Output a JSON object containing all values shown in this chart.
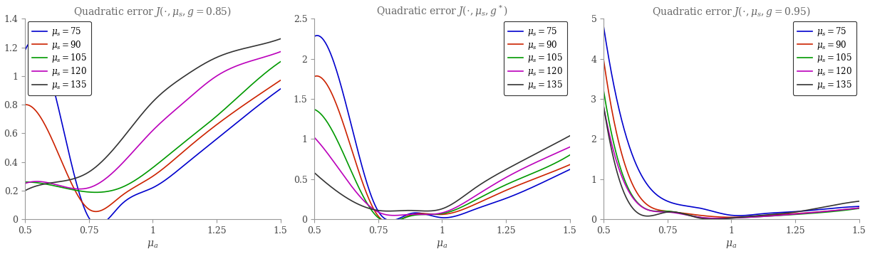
{
  "x": [
    0.5,
    0.625,
    0.75,
    0.875,
    1.0,
    1.125,
    1.25,
    1.375,
    1.5
  ],
  "titles": [
    "Quadratic error $J(\\cdot, \\mu_s, g = 0.85)$",
    "Quadratic error $J(\\cdot, \\mu_s, g^*)$",
    "Quadratic error $J(\\cdot, \\mu_s, g = 0.95)$"
  ],
  "xlabel": "$\\mu_a$",
  "colors": [
    "#0000cd",
    "#cc2200",
    "#009900",
    "#bb00bb",
    "#333333"
  ],
  "legend_labels": [
    "$\\mu_s = 75$",
    "$\\mu_s = 90$",
    "$\\mu_s = 105$",
    "$\\mu_s = 120$",
    "$\\mu_s = 135$"
  ],
  "plot1": {
    "ylim": [
      0,
      1.4
    ],
    "yticks": [
      0,
      0.2,
      0.4,
      0.6,
      0.8,
      1.0,
      1.2,
      1.4
    ],
    "xticks": [
      0.5,
      0.75,
      1.0,
      1.25,
      1.5
    ],
    "legend_loc": "upper left",
    "data": [
      [
        1.18,
        0.82,
        0.01,
        0.1,
        0.22,
        0.38,
        0.56,
        0.74,
        0.91
      ],
      [
        0.8,
        0.48,
        0.07,
        0.16,
        0.3,
        0.48,
        0.66,
        0.82,
        0.97
      ],
      [
        0.26,
        0.23,
        0.19,
        0.22,
        0.36,
        0.54,
        0.72,
        0.92,
        1.1
      ],
      [
        0.25,
        0.24,
        0.22,
        0.38,
        0.62,
        0.82,
        1.0,
        1.1,
        1.17
      ],
      [
        0.2,
        0.26,
        0.33,
        0.55,
        0.82,
        1.0,
        1.13,
        1.2,
        1.26
      ]
    ]
  },
  "plot2": {
    "ylim": [
      0,
      2.5
    ],
    "yticks": [
      0,
      0.5,
      1.0,
      1.5,
      2.0,
      2.5
    ],
    "xticks": [
      0.5,
      0.75,
      1.0,
      1.25,
      1.5
    ],
    "legend_loc": "upper right",
    "data": [
      [
        2.28,
        1.42,
        0.1,
        0.07,
        0.02,
        0.12,
        0.26,
        0.43,
        0.62
      ],
      [
        1.78,
        1.08,
        0.04,
        0.05,
        0.06,
        0.18,
        0.36,
        0.52,
        0.68
      ],
      [
        1.37,
        0.74,
        0.02,
        0.04,
        0.07,
        0.23,
        0.43,
        0.6,
        0.8
      ],
      [
        1.02,
        0.5,
        0.09,
        0.06,
        0.08,
        0.28,
        0.52,
        0.72,
        0.9
      ],
      [
        0.58,
        0.27,
        0.11,
        0.11,
        0.13,
        0.38,
        0.62,
        0.83,
        1.04
      ]
    ]
  },
  "plot3": {
    "ylim": [
      0,
      5
    ],
    "yticks": [
      0,
      1,
      2,
      3,
      4,
      5
    ],
    "xticks": [
      0.5,
      0.75,
      1.0,
      1.25,
      1.5
    ],
    "legend_loc": "upper right",
    "data": [
      [
        4.8,
        1.4,
        0.45,
        0.28,
        0.1,
        0.14,
        0.19,
        0.26,
        0.32
      ],
      [
        3.97,
        0.72,
        0.2,
        0.1,
        0.05,
        0.09,
        0.14,
        0.2,
        0.28
      ],
      [
        3.2,
        0.47,
        0.2,
        0.05,
        0.03,
        0.07,
        0.12,
        0.18,
        0.27
      ],
      [
        2.8,
        0.45,
        0.18,
        0.05,
        0.03,
        0.07,
        0.13,
        0.2,
        0.28
      ],
      [
        2.82,
        0.2,
        0.18,
        0.03,
        0.03,
        0.1,
        0.18,
        0.32,
        0.45
      ]
    ]
  },
  "fig_width": 12.21,
  "fig_height": 3.57,
  "dpi": 100,
  "background_color": "#ffffff",
  "title_font_size": 10,
  "tick_font_size": 9,
  "legend_font_size": 8.5,
  "xlabel_font_size": 10,
  "linewidth": 1.2
}
